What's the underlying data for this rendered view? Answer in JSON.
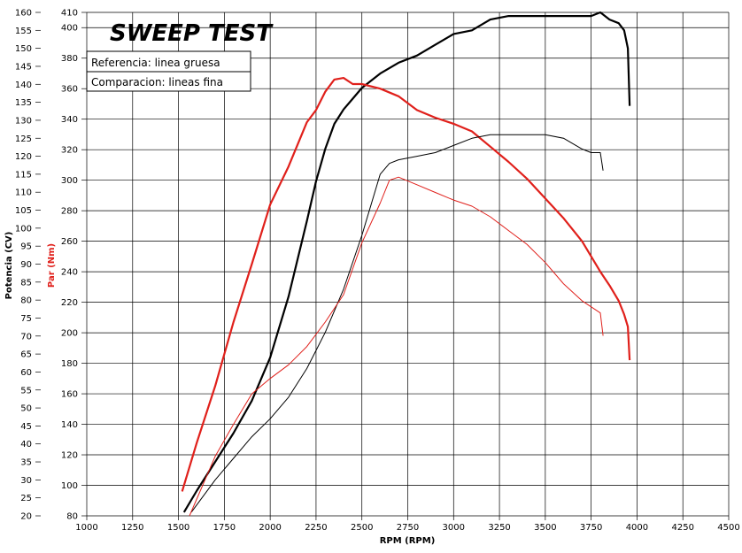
{
  "chart_data": {
    "type": "line",
    "title": "SWEEP TEST",
    "xlabel": "RPM (RPM)",
    "ylabel_left": "Potencia (CV)",
    "ylabel_right": "Par (Nm)",
    "xlim": [
      1000,
      4500
    ],
    "ylim_power": [
      20,
      160
    ],
    "ylim_torque": [
      80,
      410
    ],
    "x_ticks": [
      1000,
      1250,
      1500,
      1750,
      2000,
      2250,
      2500,
      2750,
      3000,
      3250,
      3500,
      3750,
      4000,
      4250,
      4500
    ],
    "power_ticks": [
      20,
      25,
      30,
      35,
      40,
      45,
      50,
      55,
      60,
      65,
      70,
      75,
      80,
      85,
      90,
      95,
      100,
      105,
      110,
      115,
      120,
      125,
      130,
      135,
      140,
      145,
      150,
      155,
      160
    ],
    "torque_ticks": [
      80,
      100,
      120,
      140,
      160,
      180,
      200,
      220,
      240,
      260,
      280,
      300,
      320,
      340,
      360,
      380,
      400,
      410
    ],
    "grid": true,
    "legend": {
      "placement": "top-left",
      "entries": [
        "Referencia: linea gruesa",
        "Comparacion: lineas fina"
      ]
    },
    "colors": {
      "power": "#000000",
      "torque": "#e0201b"
    },
    "series": [
      {
        "name": "Referencia: linea gruesa",
        "style": "thick",
        "quantity": "power",
        "axis": "left",
        "x": [
          1530,
          1600,
          1700,
          1800,
          1900,
          2000,
          2100,
          2200,
          2250,
          2300,
          2350,
          2400,
          2450,
          2500,
          2600,
          2700,
          2800,
          2900,
          3000,
          3100,
          3200,
          3300,
          3400,
          3500,
          3600,
          3700,
          3750,
          3800,
          3850,
          3900,
          3930,
          3950,
          3960
        ],
        "y": [
          21,
          27,
          35,
          43,
          52,
          64,
          81,
          102,
          113,
          122,
          129,
          133,
          136,
          139,
          143,
          146,
          148,
          151,
          154,
          155,
          158,
          159,
          159,
          159,
          159,
          159,
          159,
          160,
          158,
          157,
          155,
          150,
          134
        ]
      },
      {
        "name": "Referencia: linea gruesa",
        "style": "thick",
        "quantity": "torque",
        "axis": "right",
        "x": [
          1520,
          1600,
          1700,
          1800,
          1900,
          2000,
          2100,
          2200,
          2250,
          2300,
          2350,
          2400,
          2450,
          2500,
          2600,
          2700,
          2800,
          2900,
          3000,
          3100,
          3200,
          3300,
          3400,
          3500,
          3600,
          3700,
          3800,
          3850,
          3900,
          3930,
          3950,
          3960
        ],
        "y": [
          96,
          128,
          165,
          207,
          245,
          284,
          309,
          338,
          346,
          358,
          366,
          367,
          363,
          363,
          360,
          355,
          346,
          341,
          337,
          332,
          322,
          312,
          301,
          288,
          275,
          260,
          240,
          231,
          221,
          212,
          204,
          182
        ]
      },
      {
        "name": "Comparacion: lineas fina",
        "style": "thin",
        "quantity": "power",
        "axis": "left",
        "x": [
          1570,
          1700,
          1800,
          1900,
          2000,
          2100,
          2200,
          2300,
          2400,
          2500,
          2600,
          2650,
          2700,
          2800,
          2900,
          3000,
          3100,
          3200,
          3300,
          3400,
          3500,
          3600,
          3700,
          3750,
          3800,
          3815
        ],
        "y": [
          21,
          30,
          36,
          42,
          47,
          53,
          61,
          71,
          83,
          98,
          115,
          118,
          119,
          120,
          121,
          123,
          125,
          126,
          126,
          126,
          126,
          125,
          122,
          121,
          121,
          116
        ]
      },
      {
        "name": "Comparacion: lineas fina",
        "style": "thin",
        "quantity": "torque",
        "axis": "right",
        "x": [
          1560,
          1700,
          1800,
          1900,
          2000,
          2100,
          2200,
          2300,
          2400,
          2500,
          2600,
          2650,
          2700,
          2800,
          2900,
          3000,
          3100,
          3200,
          3300,
          3400,
          3500,
          3600,
          3700,
          3800,
          3815
        ],
        "y": [
          80,
          119,
          140,
          160,
          170,
          179,
          191,
          207,
          225,
          259,
          285,
          300,
          302,
          297,
          292,
          287,
          283,
          276,
          267,
          258,
          246,
          232,
          221,
          213,
          198
        ]
      }
    ]
  }
}
